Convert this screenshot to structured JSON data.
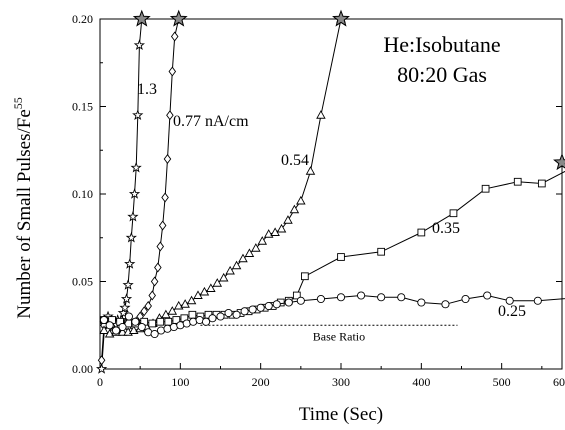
{
  "chart_data": {
    "type": "scatter",
    "title_lines": [
      "He:Isobutane",
      "80:20 Gas"
    ],
    "xlabel": "Time (Sec)",
    "ylabel": "Number of Small Pulses/Fe",
    "ylabel_superscript": "55",
    "xlim": [
      0,
      600
    ],
    "ylim": [
      0,
      0.2
    ],
    "xticks": [
      "0",
      "100",
      "200",
      "300",
      "400",
      "500",
      "600"
    ],
    "yticks": [
      "0.00",
      "0.05",
      "0.10",
      "0.15",
      "0.20"
    ],
    "grid": false,
    "series": [
      {
        "name": "1.3",
        "marker": "star",
        "x": [
          2,
          6,
          10,
          13,
          16,
          19,
          22,
          25,
          27,
          29,
          31,
          33,
          35,
          37,
          39,
          41,
          43,
          45,
          47,
          49,
          52
        ],
        "y": [
          0.0,
          0.026,
          0.03,
          0.027,
          0.025,
          0.027,
          0.028,
          0.026,
          0.028,
          0.032,
          0.035,
          0.04,
          0.048,
          0.06,
          0.075,
          0.087,
          0.1,
          0.115,
          0.145,
          0.185,
          0.2
        ]
      },
      {
        "name": "0.77 nA/cm",
        "marker": "diamond",
        "x": [
          2,
          5,
          10,
          15,
          20,
          25,
          30,
          35,
          40,
          45,
          50,
          55,
          60,
          65,
          68,
          72,
          75,
          78,
          81,
          84,
          87,
          90,
          93,
          98
        ],
        "y": [
          0.005,
          0.025,
          0.022,
          0.025,
          0.026,
          0.024,
          0.022,
          0.024,
          0.025,
          0.027,
          0.03,
          0.033,
          0.036,
          0.042,
          0.05,
          0.058,
          0.07,
          0.082,
          0.098,
          0.12,
          0.145,
          0.17,
          0.19,
          0.2
        ]
      },
      {
        "name": "0.54",
        "marker": "triangle",
        "x": [
          5,
          12,
          20,
          28,
          35,
          42,
          50,
          58,
          66,
          74,
          82,
          90,
          98,
          106,
          114,
          122,
          130,
          138,
          146,
          154,
          162,
          170,
          178,
          186,
          194,
          202,
          210,
          218,
          226,
          234,
          242,
          250,
          262,
          275,
          300
        ],
        "y": [
          0.022,
          0.02,
          0.021,
          0.021,
          0.021,
          0.022,
          0.023,
          0.024,
          0.026,
          0.029,
          0.031,
          0.033,
          0.036,
          0.037,
          0.039,
          0.042,
          0.044,
          0.046,
          0.049,
          0.052,
          0.056,
          0.059,
          0.063,
          0.066,
          0.069,
          0.073,
          0.077,
          0.078,
          0.08,
          0.085,
          0.091,
          0.096,
          0.113,
          0.145,
          0.2
        ]
      },
      {
        "name": "0.35",
        "marker": "square",
        "x": [
          5,
          15,
          25,
          35,
          45,
          55,
          65,
          75,
          85,
          95,
          105,
          115,
          125,
          135,
          145,
          155,
          165,
          175,
          185,
          195,
          205,
          215,
          225,
          235,
          245,
          255,
          300,
          350,
          400,
          440,
          480,
          520,
          550,
          600
        ],
        "y": [
          0.028,
          0.028,
          0.027,
          0.026,
          0.026,
          0.027,
          0.026,
          0.027,
          0.027,
          0.028,
          0.029,
          0.031,
          0.03,
          0.031,
          0.031,
          0.031,
          0.031,
          0.032,
          0.033,
          0.034,
          0.035,
          0.036,
          0.038,
          0.039,
          0.042,
          0.053,
          0.064,
          0.067,
          0.078,
          0.089,
          0.103,
          0.107,
          0.106,
          0.118
        ]
      },
      {
        "name": "0.25",
        "marker": "circle",
        "x": [
          5,
          12,
          20,
          28,
          36,
          44,
          52,
          60,
          68,
          76,
          84,
          92,
          100,
          108,
          116,
          124,
          132,
          140,
          150,
          160,
          170,
          180,
          190,
          200,
          210,
          220,
          235,
          250,
          275,
          300,
          325,
          350,
          375,
          400,
          430,
          455,
          482,
          510,
          545,
          600
        ],
        "y": [
          0.028,
          0.025,
          0.022,
          0.024,
          0.03,
          0.027,
          0.024,
          0.021,
          0.02,
          0.022,
          0.023,
          0.024,
          0.025,
          0.026,
          0.027,
          0.028,
          0.027,
          0.029,
          0.03,
          0.032,
          0.031,
          0.033,
          0.034,
          0.035,
          0.036,
          0.037,
          0.038,
          0.039,
          0.04,
          0.041,
          0.042,
          0.041,
          0.041,
          0.038,
          0.037,
          0.04,
          0.042,
          0.039,
          0.039,
          0.041
        ]
      }
    ],
    "end_stars": [
      {
        "x": 52,
        "y": 0.2
      },
      {
        "x": 98,
        "y": 0.2
      },
      {
        "x": 300,
        "y": 0.2
      },
      {
        "x": 600,
        "y": 0.118
      }
    ],
    "base_ratio": {
      "label": "Base Ratio",
      "y": 0.025,
      "x_start": 125,
      "x_end": 445
    }
  }
}
